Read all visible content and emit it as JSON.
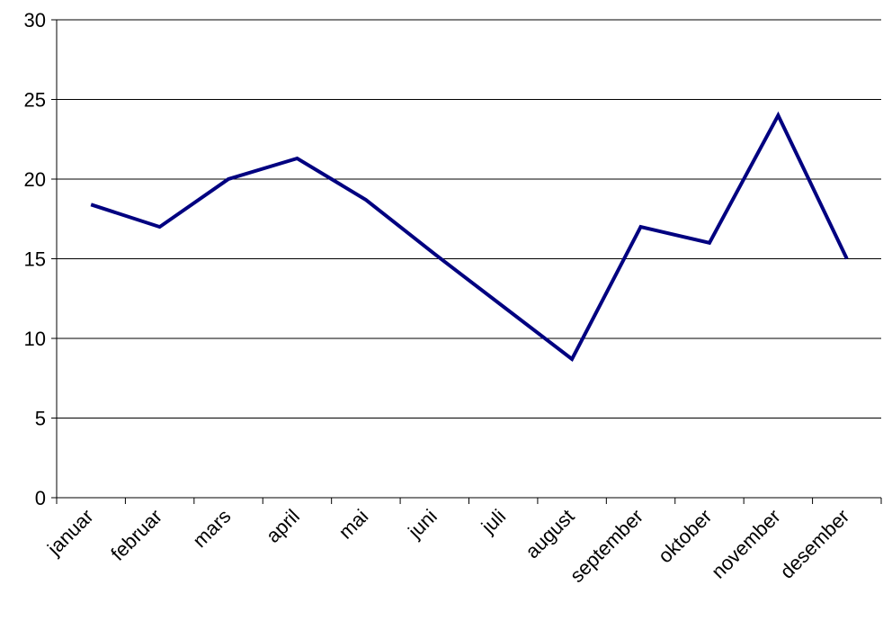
{
  "chart_data": {
    "type": "line",
    "title": "",
    "xlabel": "",
    "ylabel": "",
    "ylim": [
      0,
      30
    ],
    "yticks": [
      0,
      5,
      10,
      15,
      20,
      25,
      30
    ],
    "grid": true,
    "legend": "none",
    "categories": [
      "januar",
      "februar",
      "mars",
      "april",
      "mai",
      "juni",
      "juli",
      "august",
      "september",
      "oktober",
      "november",
      "desember"
    ],
    "series": [
      {
        "values": [
          18.4,
          17.0,
          20.0,
          21.3,
          18.7,
          15.3,
          12.0,
          8.7,
          17.0,
          16.0,
          24.0,
          15.0
        ],
        "color": "#000080"
      }
    ]
  }
}
